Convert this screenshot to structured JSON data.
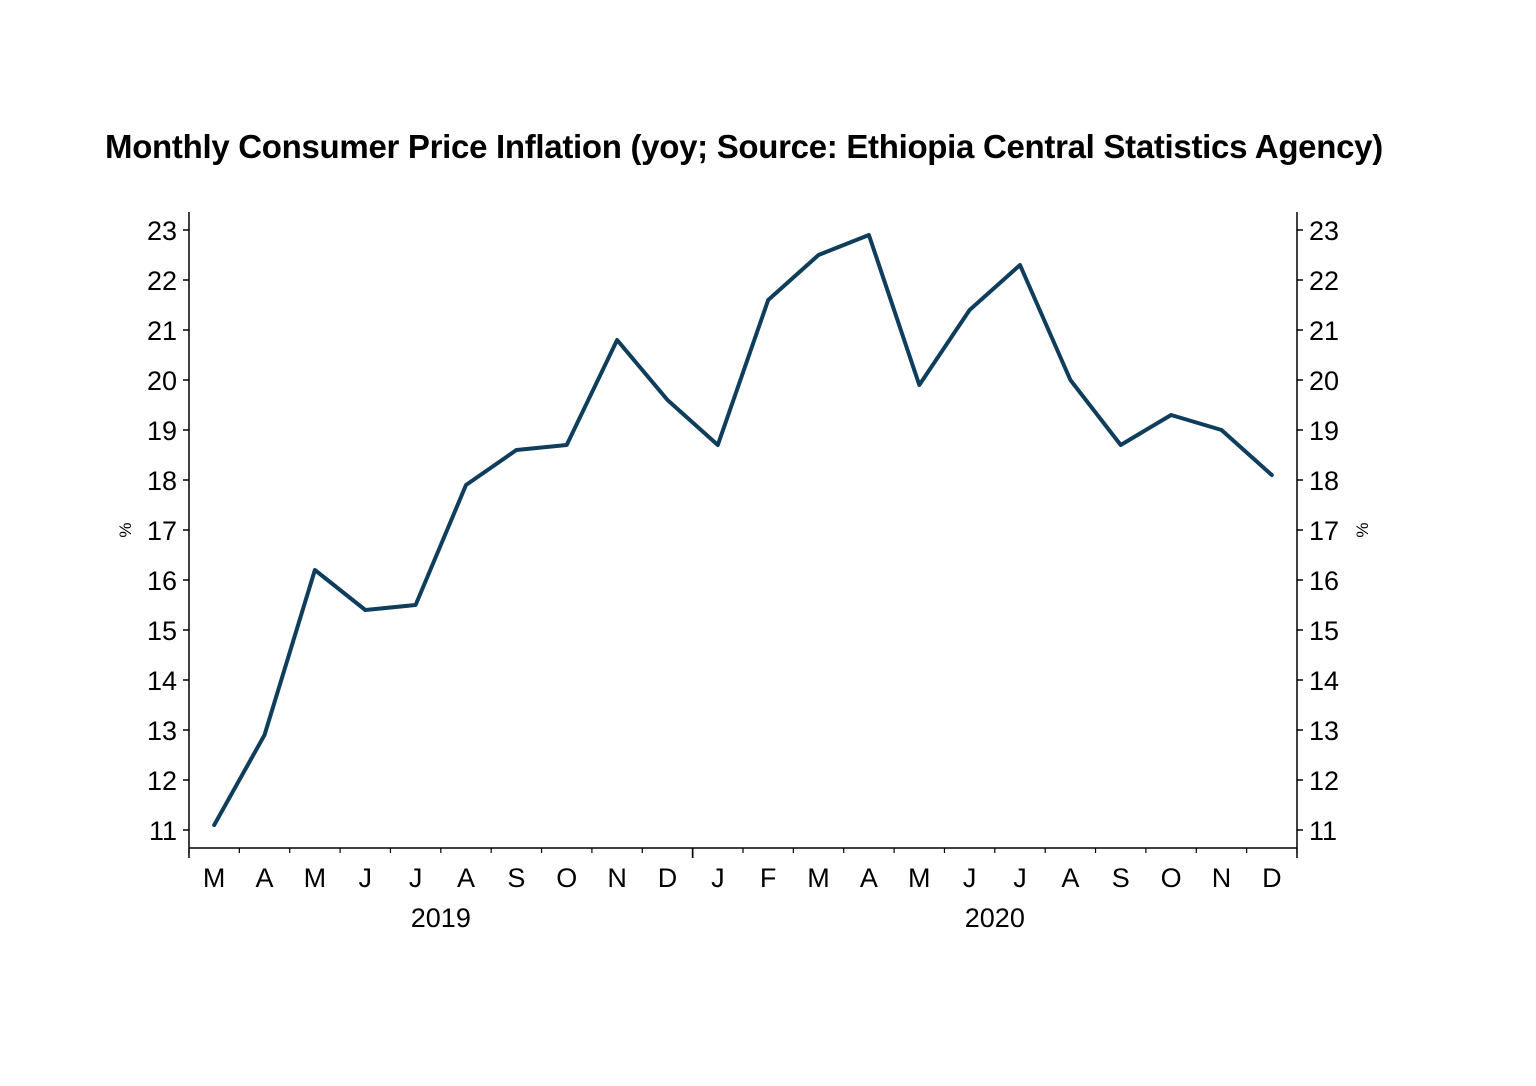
{
  "colors": {
    "line": "#0f3d5c",
    "axis": "#000000",
    "background": "#ffffff"
  },
  "chart_data": {
    "type": "line",
    "title": "Monthly Consumer Price Inflation (yoy; Source: Ethiopia Central Statistics Agency)",
    "ylabel_left": "%",
    "ylabel_right": "%",
    "ylim": [
      10.6,
      23.4
    ],
    "yticks": [
      11,
      12,
      13,
      14,
      15,
      16,
      17,
      18,
      19,
      20,
      21,
      22,
      23
    ],
    "categories": [
      "M",
      "A",
      "M",
      "J",
      "J",
      "A",
      "S",
      "O",
      "N",
      "D",
      "J",
      "F",
      "M",
      "A",
      "M",
      "J",
      "J",
      "A",
      "S",
      "O",
      "N",
      "D"
    ],
    "year_groups": [
      {
        "label": "2019",
        "start": 0,
        "end": 9
      },
      {
        "label": "2020",
        "start": 10,
        "end": 21
      }
    ],
    "series": [
      {
        "values": [
          11.1,
          12.9,
          16.2,
          15.4,
          15.5,
          17.9,
          18.6,
          18.7,
          20.8,
          19.6,
          18.7,
          21.6,
          22.5,
          22.9,
          19.9,
          21.4,
          22.3,
          20.0,
          18.7,
          19.3,
          19.0,
          18.1
        ]
      }
    ],
    "grid": false,
    "legend": "none"
  }
}
